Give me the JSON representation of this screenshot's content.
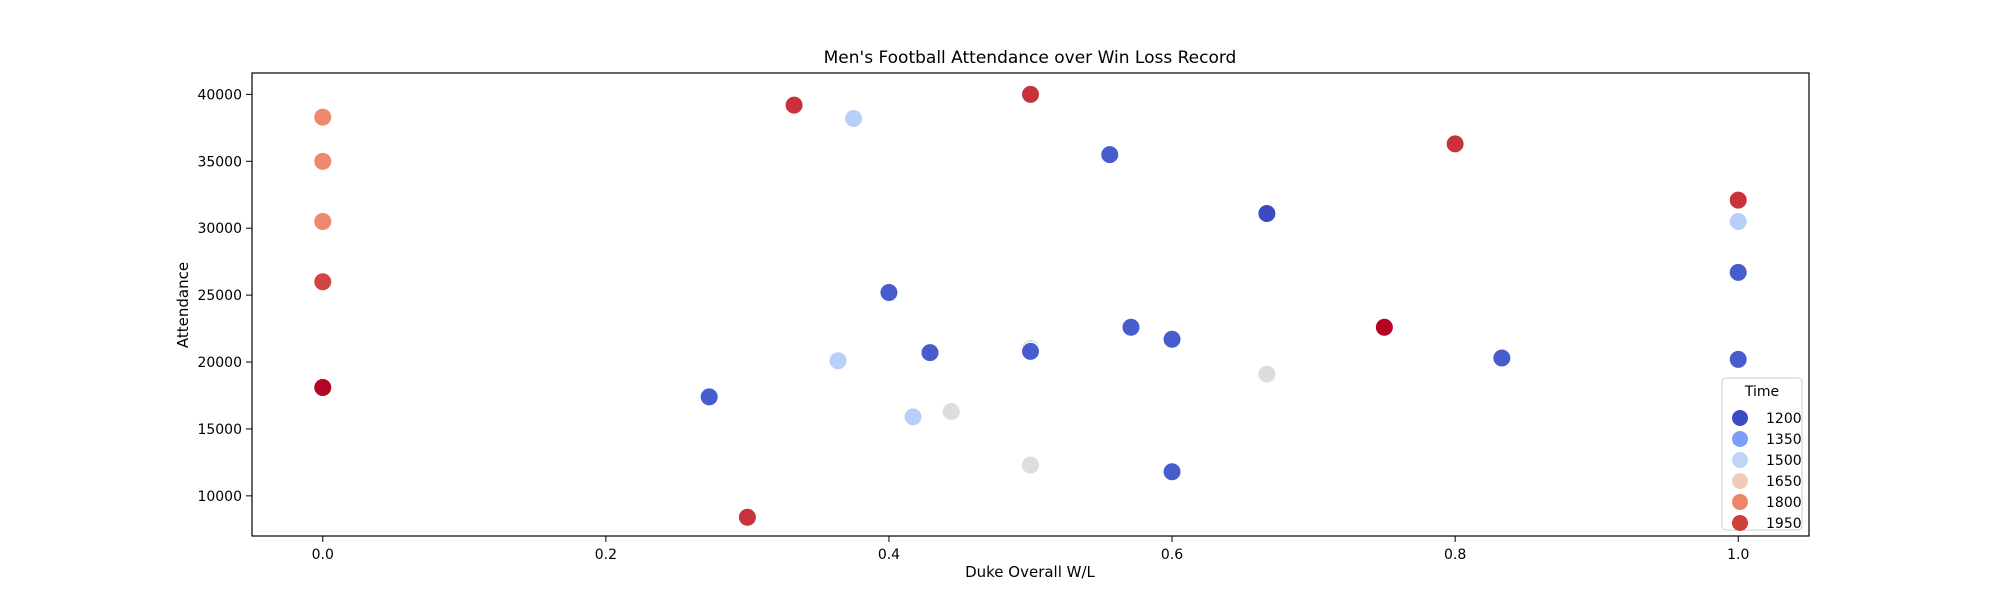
{
  "chart_data": {
    "type": "scatter",
    "title": "Men's Football Attendance over Win Loss Record",
    "xlabel": "Duke Overall W/L",
    "ylabel": "Attendance",
    "xlim": [
      -0.05,
      1.05
    ],
    "ylim": [
      7000,
      41600
    ],
    "xticks": [
      0.0,
      0.2,
      0.4,
      0.6,
      0.8,
      1.0
    ],
    "xtick_labels": [
      "0.0",
      "0.2",
      "0.4",
      "0.6",
      "0.8",
      "1.0"
    ],
    "yticks": [
      10000,
      15000,
      20000,
      25000,
      30000,
      35000,
      40000
    ],
    "ytick_labels": [
      "10000",
      "15000",
      "20000",
      "25000",
      "30000",
      "35000",
      "40000"
    ],
    "grid": false,
    "legend": {
      "title": "Time",
      "placement": "lower-right",
      "entries": [
        {
          "label": "1200",
          "color": "#3b4cc0"
        },
        {
          "label": "1350",
          "color": "#7b9ff9"
        },
        {
          "label": "1500",
          "color": "#c0d4f5"
        },
        {
          "label": "1650",
          "color": "#f2cbb7"
        },
        {
          "label": "1800",
          "color": "#ee8468"
        },
        {
          "label": "1950",
          "color": "#cc403a"
        }
      ]
    },
    "color_scale": {
      "colormap": "coolwarm",
      "vmin": 1200,
      "vmax": 2000
    },
    "points": [
      {
        "x": 0.0,
        "y": 38300,
        "time": 1830
      },
      {
        "x": 0.0,
        "y": 35000,
        "time": 1830
      },
      {
        "x": 0.0,
        "y": 30500,
        "time": 1830
      },
      {
        "x": 0.0,
        "y": 26000,
        "time": 1930
      },
      {
        "x": 0.0,
        "y": 18100,
        "time": 2000
      },
      {
        "x": 0.273,
        "y": 17400,
        "time": 1230
      },
      {
        "x": 0.3,
        "y": 8400,
        "time": 1950
      },
      {
        "x": 0.333,
        "y": 39200,
        "time": 1950
      },
      {
        "x": 0.364,
        "y": 20100,
        "time": 1500
      },
      {
        "x": 0.375,
        "y": 38200,
        "time": 1500
      },
      {
        "x": 0.4,
        "y": 25200,
        "time": 1230
      },
      {
        "x": 0.417,
        "y": 15900,
        "time": 1500
      },
      {
        "x": 0.429,
        "y": 20700,
        "time": 1230
      },
      {
        "x": 0.444,
        "y": 16300,
        "time": 1600
      },
      {
        "x": 0.5,
        "y": 40000,
        "time": 1950
      },
      {
        "x": 0.5,
        "y": 21000,
        "time": 1600
      },
      {
        "x": 0.5,
        "y": 20800,
        "time": 1230
      },
      {
        "x": 0.5,
        "y": 12300,
        "time": 1600
      },
      {
        "x": 0.556,
        "y": 35500,
        "time": 1230
      },
      {
        "x": 0.571,
        "y": 22600,
        "time": 1230
      },
      {
        "x": 0.6,
        "y": 21700,
        "time": 1230
      },
      {
        "x": 0.6,
        "y": 11800,
        "time": 1230
      },
      {
        "x": 0.667,
        "y": 31100,
        "time": 1200
      },
      {
        "x": 0.667,
        "y": 19100,
        "time": 1600
      },
      {
        "x": 0.75,
        "y": 22600,
        "time": 2000
      },
      {
        "x": 0.8,
        "y": 36300,
        "time": 1950
      },
      {
        "x": 0.833,
        "y": 20300,
        "time": 1230
      },
      {
        "x": 1.0,
        "y": 32100,
        "time": 1950
      },
      {
        "x": 1.0,
        "y": 30500,
        "time": 1500
      },
      {
        "x": 1.0,
        "y": 26700,
        "time": 1230
      },
      {
        "x": 1.0,
        "y": 20200,
        "time": 1230
      }
    ]
  }
}
